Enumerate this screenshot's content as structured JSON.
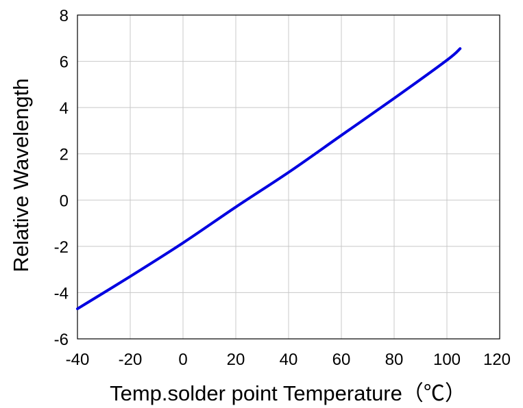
{
  "chart_data": {
    "type": "line",
    "title": "",
    "xlabel": "Temp.solder point Temperature（℃）",
    "ylabel": "Relative Wavelength",
    "xlim": [
      -40,
      120
    ],
    "ylim": [
      -6,
      8
    ],
    "x_ticks": [
      -40,
      -20,
      0,
      20,
      40,
      60,
      80,
      100,
      120
    ],
    "y_ticks": [
      -6,
      -4,
      -2,
      0,
      2,
      4,
      6,
      8
    ],
    "grid": true,
    "legend": "none",
    "series": [
      {
        "color": "#0000e0",
        "x": [
          -40,
          -20,
          0,
          20,
          40,
          60,
          80,
          100,
          105
        ],
        "y": [
          -4.7,
          -3.3,
          -1.85,
          -0.3,
          1.2,
          2.8,
          4.4,
          6.05,
          6.55
        ]
      }
    ]
  }
}
